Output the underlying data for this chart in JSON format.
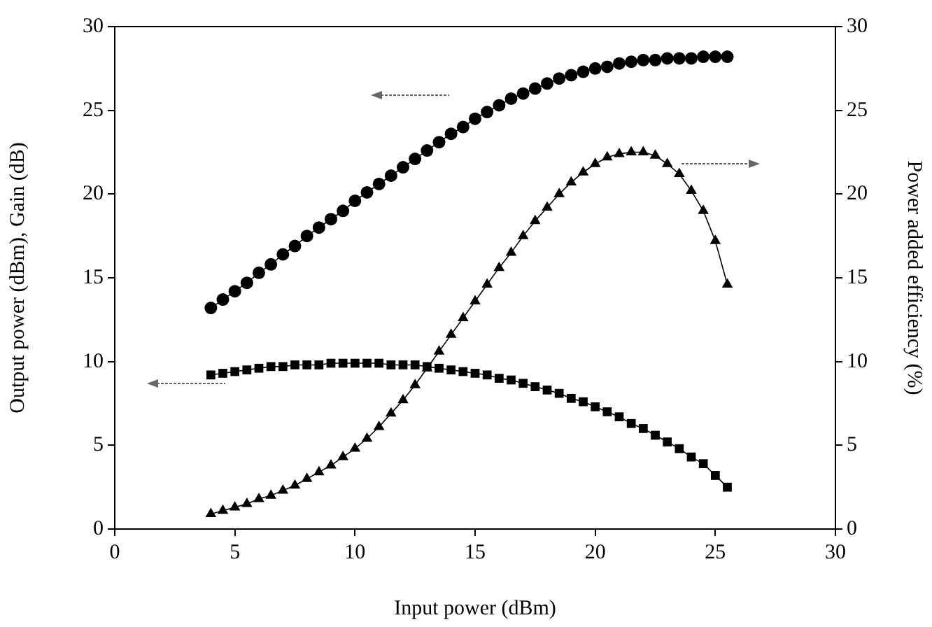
{
  "chart_data": {
    "type": "line",
    "xlabel": "Input power (dBm)",
    "ylabel": "Output power (dBm), Gain (dB)",
    "y2label": "Power added efficiency (%)",
    "x": [
      4,
      4.5,
      5,
      5.5,
      6,
      6.5,
      7,
      7.5,
      8,
      8.5,
      9,
      9.5,
      10,
      10.5,
      11,
      11.5,
      12,
      12.5,
      13,
      13.5,
      14,
      14.5,
      15,
      15.5,
      16,
      16.5,
      17,
      17.5,
      18,
      18.5,
      19,
      19.5,
      20,
      20.5,
      21,
      21.5,
      22,
      22.5,
      23,
      23.5,
      24,
      24.5,
      25,
      25.5
    ],
    "series": [
      {
        "color": "#000000",
        "marker": "circle",
        "values": [
          13.2,
          13.7,
          14.2,
          14.7,
          15.3,
          15.8,
          16.4,
          16.9,
          17.5,
          18.0,
          18.5,
          19.0,
          19.6,
          20.1,
          20.6,
          21.1,
          21.6,
          22.1,
          22.6,
          23.1,
          23.6,
          24.0,
          24.5,
          24.9,
          25.3,
          25.7,
          26.0,
          26.3,
          26.6,
          26.9,
          27.1,
          27.3,
          27.5,
          27.6,
          27.8,
          27.9,
          28.0,
          28.0,
          28.1,
          28.1,
          28.1,
          28.2,
          28.2,
          28.2
        ]
      },
      {
        "color": "#000000",
        "marker": "square",
        "values": [
          9.2,
          9.3,
          9.4,
          9.5,
          9.6,
          9.7,
          9.7,
          9.8,
          9.8,
          9.8,
          9.9,
          9.9,
          9.9,
          9.9,
          9.9,
          9.8,
          9.8,
          9.8,
          9.7,
          9.6,
          9.5,
          9.4,
          9.3,
          9.2,
          9.0,
          8.9,
          8.7,
          8.5,
          8.3,
          8.1,
          7.8,
          7.6,
          7.3,
          7.0,
          6.7,
          6.3,
          6.0,
          5.6,
          5.2,
          4.8,
          4.3,
          3.9,
          3.2,
          2.5
        ]
      },
      {
        "color": "#000000",
        "marker": "triangle",
        "axis": "y2",
        "values": [
          0.9,
          1.1,
          1.3,
          1.5,
          1.8,
          2.0,
          2.3,
          2.6,
          3.0,
          3.4,
          3.8,
          4.3,
          4.8,
          5.4,
          6.1,
          6.9,
          7.7,
          8.6,
          9.6,
          10.6,
          11.6,
          12.6,
          13.6,
          14.6,
          15.6,
          16.5,
          17.5,
          18.4,
          19.2,
          20.0,
          20.7,
          21.3,
          21.8,
          22.2,
          22.4,
          22.5,
          22.5,
          22.3,
          21.8,
          21.2,
          20.2,
          19.0,
          17.2,
          14.6
        ]
      }
    ],
    "xlim": [
      0,
      30
    ],
    "xticks": [
      0,
      5,
      10,
      15,
      20,
      25,
      30
    ],
    "ylim": [
      0,
      30
    ],
    "yticks": [
      0,
      5,
      10,
      15,
      20,
      25,
      30
    ],
    "y2lim": [
      0,
      30
    ],
    "y2ticks": [
      0,
      5,
      10,
      15,
      20,
      25,
      30
    ],
    "grid": false,
    "legend": false,
    "line_style": "solid"
  }
}
